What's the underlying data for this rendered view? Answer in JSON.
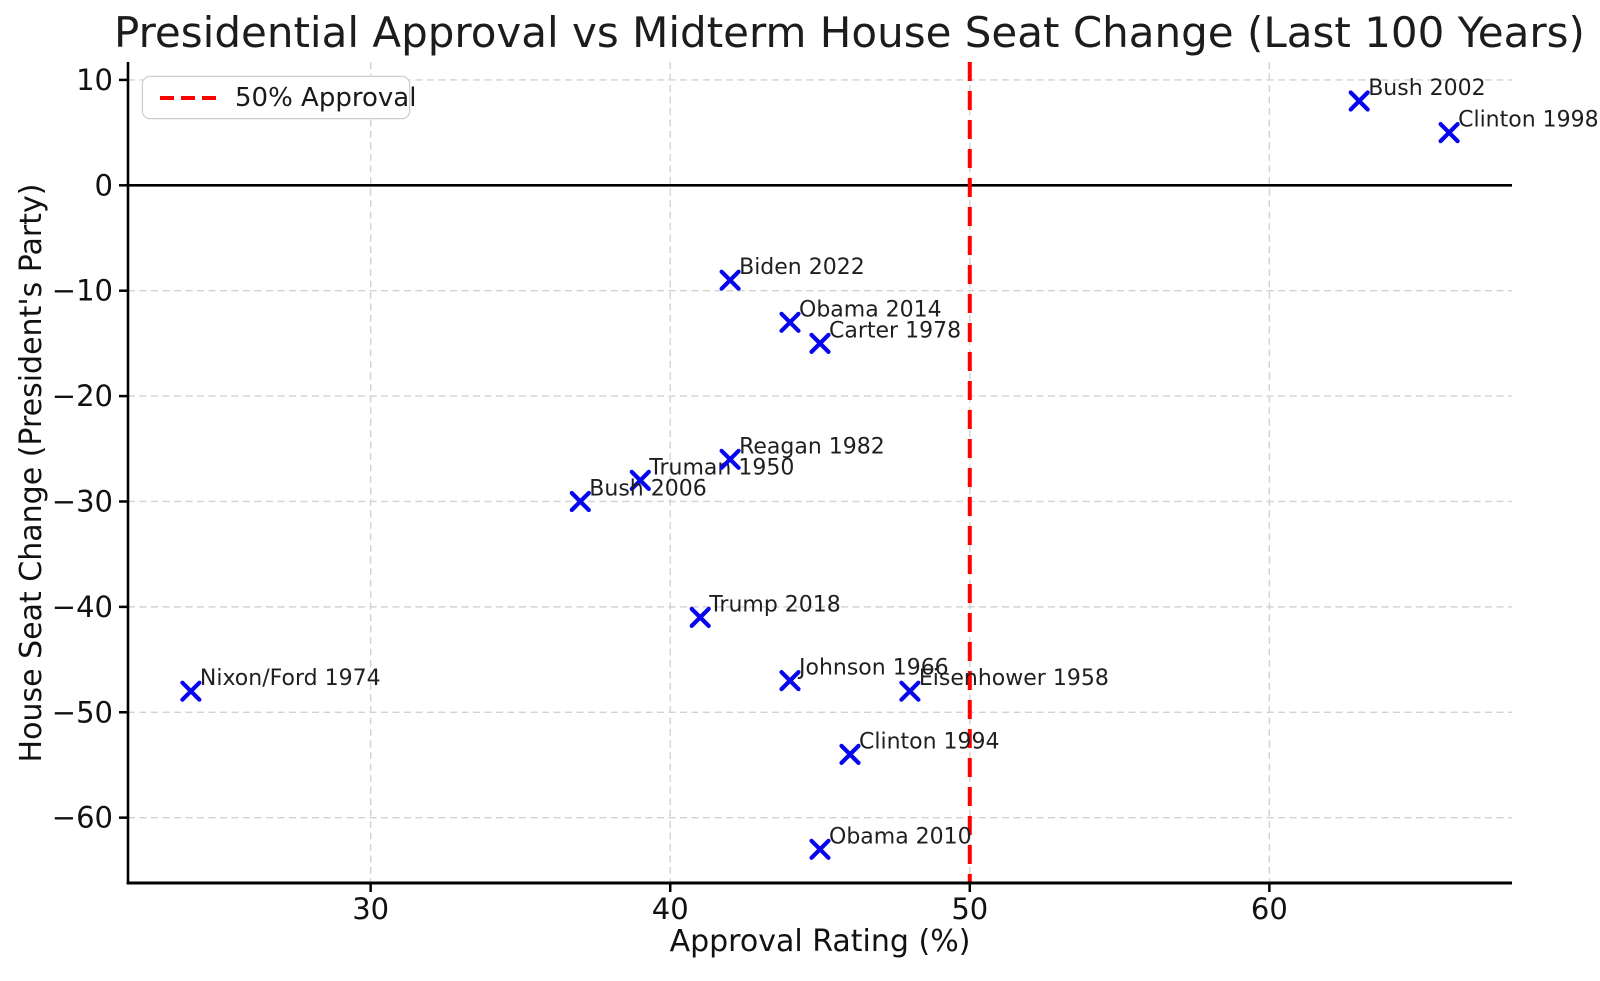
{
  "chart_data": {
    "type": "scatter",
    "title": "Presidential Approval vs Midterm House Seat Change (Last 100 Years)",
    "xlabel": "Approval Rating (%)",
    "ylabel": "House Seat Change (President's Party)",
    "xlim": [
      21.9,
      68.1
    ],
    "ylim": [
      -66.2,
      11.7
    ],
    "x_ticks": [
      30,
      40,
      50,
      60
    ],
    "y_ticks": [
      10,
      0,
      -10,
      -20,
      -30,
      -40,
      -50,
      -60
    ],
    "grid": true,
    "grid_style": "dashed",
    "legend": {
      "position": "upper-left",
      "entries": [
        {
          "label": "50% Approval",
          "style": "dashed",
          "color": "#FF0000"
        }
      ]
    },
    "reference_line": {
      "axis": "x",
      "value": 50,
      "color": "#FF0000",
      "style": "dashed"
    },
    "zero_line": {
      "axis": "y",
      "value": 0,
      "color": "#000000",
      "style": "solid"
    },
    "marker": {
      "shape": "x",
      "color": "#0505F0",
      "size": 17,
      "stroke_width": 4.2
    },
    "points": [
      {
        "label": "Truman 1950",
        "x": 39,
        "y": -28
      },
      {
        "label": "Eisenhower 1958",
        "x": 48,
        "y": -48
      },
      {
        "label": "Johnson 1966",
        "x": 44,
        "y": -47
      },
      {
        "label": "Nixon/Ford 1974",
        "x": 24,
        "y": -48
      },
      {
        "label": "Carter 1978",
        "x": 45,
        "y": -15
      },
      {
        "label": "Reagan 1982",
        "x": 42,
        "y": -26
      },
      {
        "label": "Clinton 1994",
        "x": 46,
        "y": -54
      },
      {
        "label": "Clinton 1998",
        "x": 66,
        "y": 5
      },
      {
        "label": "Bush 2002",
        "x": 63,
        "y": 8
      },
      {
        "label": "Bush 2006",
        "x": 37,
        "y": -30
      },
      {
        "label": "Obama 2010",
        "x": 45,
        "y": -63
      },
      {
        "label": "Obama 2014",
        "x": 44,
        "y": -13
      },
      {
        "label": "Trump 2018",
        "x": 41,
        "y": -41
      },
      {
        "label": "Biden 2022",
        "x": 42,
        "y": -9
      }
    ],
    "colors": {
      "marker": "#0505F0",
      "reference_line": "#FF0000",
      "grid": "#d2d2d2",
      "spine": "#000000",
      "text": "#111111",
      "annotation_text": "#1f1f1f",
      "background": "#ffffff"
    }
  }
}
